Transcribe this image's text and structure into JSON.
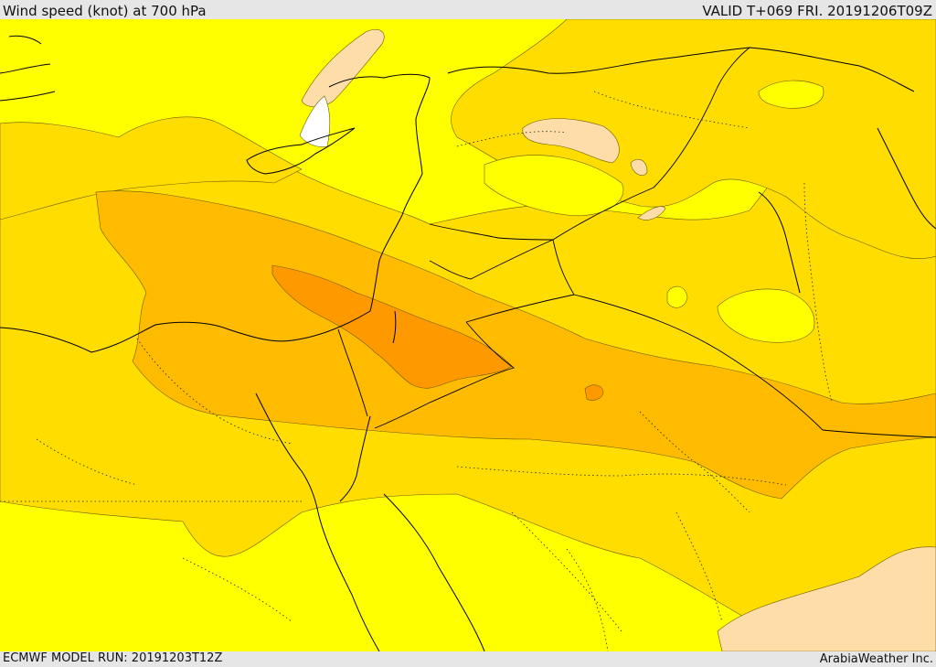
{
  "header": {
    "title": "Wind speed (knot) at 700 hPa",
    "valid": "VALID T+069 FRI. 20191206T09Z"
  },
  "footer": {
    "model_run": "ECMWF MODEL RUN: 20191203T12Z",
    "credit": "ArabiaWeather Inc."
  },
  "colors": {
    "sea_and_frame": "#e6e6e6",
    "band_light": "#ffff00",
    "band_mid": "#ffdd00",
    "band_strong": "#ffbb00",
    "band_stronger": "#ff9900",
    "band_calm": "#ffdda8",
    "band_calmest": "#ffffff",
    "borders": "#000000"
  }
}
